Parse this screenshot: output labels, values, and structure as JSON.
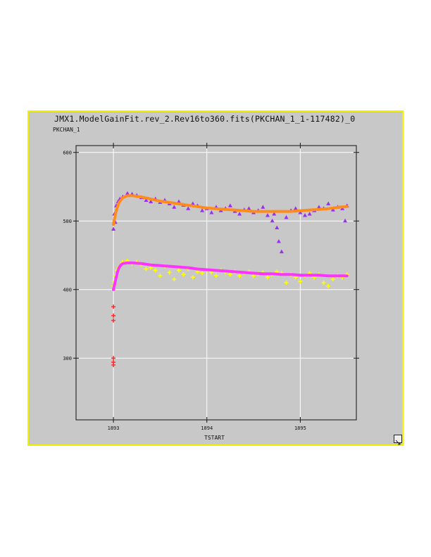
{
  "colors": {
    "panel_bg": "#c8c8c8",
    "panel_border": "#f0f000",
    "plot_bg": "#c8c8c8",
    "grid": "#ffffff",
    "upper_points": "#9a2ff0",
    "upper_fit": "#ff8c1a",
    "lower_points": "#ffff00",
    "lower_fit": "#ff33ff",
    "early_points": "#ff3030"
  },
  "icons": {
    "resize": "resize-corner-icon"
  },
  "chart_data": {
    "type": "scatter",
    "title": "JMX1.ModelGainFit.rev_2.Rev16to360.fits(PKCHAN_1_1-117482)_0",
    "xlabel": "TSTART",
    "ylabel": "PKCHAN_1",
    "xlim": [
      1892.6,
      1895.6
    ],
    "ylim": [
      210,
      610
    ],
    "xticks": [
      1893,
      1894,
      1895
    ],
    "yticks": [
      300,
      400,
      500,
      600
    ],
    "grid": true,
    "series": [
      {
        "marker": "triangle",
        "color": "#9a2ff0",
        "x": [
          1893.0,
          1893.01,
          1893.02,
          1893.03,
          1893.05,
          1893.07,
          1893.1,
          1893.15,
          1893.2,
          1893.25,
          1893.3,
          1893.35,
          1893.4,
          1893.45,
          1893.5,
          1893.55,
          1893.6,
          1893.65,
          1893.7,
          1893.75,
          1893.8,
          1893.85,
          1893.9,
          1893.95,
          1894.0,
          1894.05,
          1894.1,
          1894.15,
          1894.2,
          1894.25,
          1894.3,
          1894.35,
          1894.4,
          1894.45,
          1894.5,
          1894.55,
          1894.6,
          1894.65,
          1894.7,
          1894.72,
          1894.75,
          1894.77,
          1894.8,
          1894.85,
          1894.9,
          1894.95,
          1895.0,
          1895.05,
          1895.1,
          1895.15,
          1895.2,
          1895.25,
          1895.3,
          1895.35,
          1895.4,
          1895.45,
          1895.48,
          1895.5
        ],
        "y": [
          488,
          510,
          498,
          522,
          528,
          532,
          535,
          540,
          539,
          537,
          534,
          530,
          528,
          532,
          527,
          530,
          525,
          520,
          528,
          523,
          518,
          525,
          522,
          515,
          518,
          512,
          520,
          515,
          518,
          522,
          514,
          510,
          516,
          518,
          512,
          515,
          520,
          508,
          500,
          510,
          490,
          470,
          455,
          505,
          515,
          518,
          512,
          508,
          510,
          515,
          520,
          518,
          525,
          516,
          520,
          518,
          500,
          522
        ]
      },
      {
        "marker": "plus",
        "color": "#ffff00",
        "x": [
          1893.0,
          1893.01,
          1893.02,
          1893.04,
          1893.06,
          1893.08,
          1893.1,
          1893.15,
          1893.2,
          1893.25,
          1893.3,
          1893.35,
          1893.4,
          1893.45,
          1893.5,
          1893.55,
          1893.6,
          1893.65,
          1893.7,
          1893.75,
          1893.8,
          1893.85,
          1893.9,
          1893.95,
          1894.0,
          1894.05,
          1894.1,
          1894.15,
          1894.2,
          1894.25,
          1894.3,
          1894.35,
          1894.4,
          1894.45,
          1894.5,
          1894.55,
          1894.6,
          1894.65,
          1894.7,
          1894.75,
          1894.8,
          1894.85,
          1894.9,
          1894.95,
          1895.0,
          1895.05,
          1895.1,
          1895.15,
          1895.2,
          1895.25,
          1895.3,
          1895.35,
          1895.4,
          1895.45,
          1895.5
        ],
        "y": [
          405,
          412,
          420,
          428,
          432,
          436,
          440,
          442,
          438,
          440,
          436,
          430,
          432,
          428,
          420,
          434,
          425,
          415,
          428,
          422,
          430,
          418,
          426,
          424,
          428,
          425,
          420,
          428,
          425,
          422,
          426,
          420,
          424,
          426,
          420,
          423,
          425,
          418,
          422,
          426,
          424,
          410,
          422,
          418,
          412,
          420,
          424,
          418,
          422,
          410,
          405,
          415,
          420,
          418,
          422
        ]
      },
      {
        "marker": "plus",
        "color": "#ff3030",
        "x": [
          1893.0,
          1893.0,
          1893.0,
          1893.0,
          1893.0,
          1893.0
        ],
        "y": [
          290,
          294,
          300,
          355,
          362,
          375
        ]
      },
      {
        "marker": "line",
        "color": "#ff8c1a",
        "x": [
          1893.0,
          1893.03,
          1893.06,
          1893.1,
          1893.15,
          1893.2,
          1893.3,
          1893.4,
          1893.5,
          1893.6,
          1893.7,
          1893.8,
          1893.9,
          1894.0,
          1894.1,
          1894.2,
          1894.3,
          1894.4,
          1894.5,
          1894.6,
          1894.7,
          1894.8,
          1894.9,
          1895.0,
          1895.1,
          1895.2,
          1895.3,
          1895.4,
          1895.5
        ],
        "y": [
          495,
          515,
          527,
          534,
          537,
          537,
          535,
          532,
          529,
          527,
          525,
          523,
          521,
          519,
          518,
          517,
          516,
          515,
          514,
          514,
          514,
          514,
          514,
          515,
          516,
          517,
          518,
          520,
          521
        ]
      },
      {
        "marker": "line",
        "color": "#ff33ff",
        "x": [
          1893.0,
          1893.02,
          1893.04,
          1893.06,
          1893.08,
          1893.1,
          1893.15,
          1893.2,
          1893.3,
          1893.4,
          1893.5,
          1893.6,
          1893.7,
          1893.8,
          1893.9,
          1894.0,
          1894.1,
          1894.2,
          1894.3,
          1894.4,
          1894.5,
          1894.6,
          1894.7,
          1894.8,
          1894.9,
          1895.0,
          1895.1,
          1895.2,
          1895.3,
          1895.4,
          1895.5
        ],
        "y": [
          400,
          412,
          424,
          432,
          436,
          438,
          439,
          439,
          438,
          436,
          435,
          434,
          433,
          432,
          430,
          429,
          428,
          427,
          426,
          425,
          424,
          423,
          423,
          422,
          422,
          421,
          421,
          421,
          420,
          420,
          420
        ]
      }
    ]
  }
}
